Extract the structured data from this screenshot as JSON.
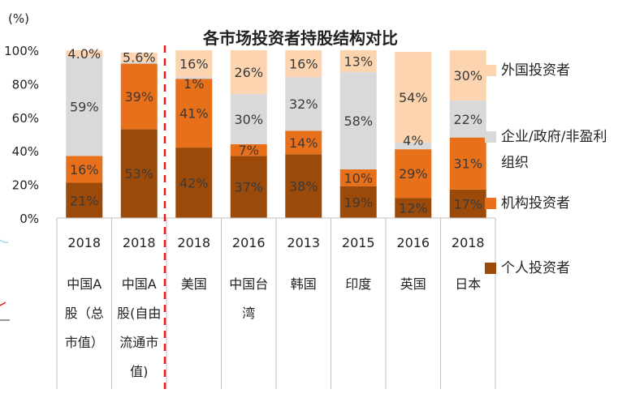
{
  "chart_data": {
    "type": "bar",
    "stacked": true,
    "title": "各市场投资者持股结构对比",
    "ylabel": "(%)",
    "ylim": [
      0,
      100
    ],
    "yticks": [
      "0%",
      "20%",
      "40%",
      "60%",
      "80%",
      "100%"
    ],
    "categories": [
      {
        "year": "2018",
        "name": "中国A股（总市值）",
        "lines": [
          "中国A",
          "股（总",
          "市值）"
        ]
      },
      {
        "year": "2018",
        "name": "中国A股(自由流通市值)",
        "lines": [
          "中国A",
          "股(自由",
          "流通市",
          "值)"
        ]
      },
      {
        "year": "2018",
        "name": "美国",
        "lines": [
          "美国"
        ]
      },
      {
        "year": "2016",
        "name": "中国台湾",
        "lines": [
          "中国台",
          "湾"
        ]
      },
      {
        "year": "2013",
        "name": "韩国",
        "lines": [
          "韩国"
        ]
      },
      {
        "year": "2015",
        "name": "印度",
        "lines": [
          "印度"
        ]
      },
      {
        "year": "2016",
        "name": "英国",
        "lines": [
          "英国"
        ]
      },
      {
        "year": "2018",
        "name": "日本",
        "lines": [
          "日本"
        ]
      }
    ],
    "series": [
      {
        "name": "个人投资者",
        "color": "#9c4a0a",
        "values": [
          21,
          53,
          42,
          37,
          38,
          19,
          12,
          17
        ],
        "labels": [
          "21%",
          "53%",
          "42%",
          "37%",
          "38%",
          "19%",
          "12%",
          "17%"
        ]
      },
      {
        "name": "机构投资者",
        "color": "#e8701b",
        "values": [
          16,
          39,
          41,
          7,
          14,
          10,
          29,
          31
        ],
        "labels": [
          "16%",
          "39%",
          "41%",
          "7%",
          "14%",
          "10%",
          "29%",
          "31%"
        ]
      },
      {
        "name": "企业/政府/非盈利组织",
        "color": "#d9d9d9",
        "values": [
          59,
          1,
          1,
          30,
          32,
          58,
          4,
          22
        ],
        "labels": [
          "59%",
          "",
          "1%",
          "30%",
          "32%",
          "58%",
          "4%",
          "22%"
        ]
      },
      {
        "name": "外国投资者",
        "color": "#fcd5b0",
        "values": [
          4,
          5.6,
          16,
          26,
          16,
          13,
          54,
          30
        ],
        "labels": [
          "4.0%",
          "5.6%",
          "16%",
          "26%",
          "16%",
          "13%",
          "54%",
          "30%"
        ]
      }
    ],
    "legend": {
      "position": "right",
      "items": [
        {
          "label": "外国投资者",
          "color": "#fcd5b0"
        },
        {
          "label": "企业/政府/非盈利组织",
          "color": "#d9d9d9"
        },
        {
          "label": "机构投资者",
          "color": "#e8701b"
        },
        {
          "label": "个人投资者",
          "color": "#9c4a0a"
        }
      ]
    },
    "divider_after_category": 2,
    "divider_color": "#e8191b"
  }
}
